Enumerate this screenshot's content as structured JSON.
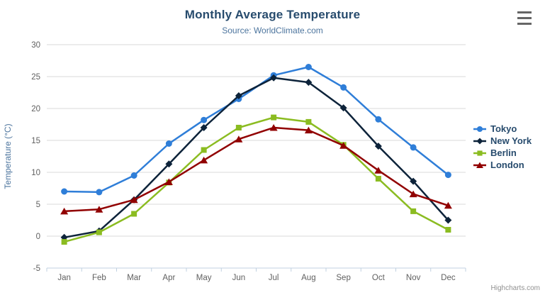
{
  "header": {
    "title": "Monthly Average Temperature",
    "subtitle": "Source: WorldClimate.com"
  },
  "credit": {
    "label": "Highcharts.com"
  },
  "icons": {
    "context_menu": "hamburger-menu-icon"
  },
  "colors": {
    "title_text": "#274b6d",
    "subtitle_text": "#4d759e",
    "axis_label": "#606060",
    "axis_title": "#4d759e",
    "grid_line": "#d8d8d8",
    "axis_line": "#c0d0e0",
    "legend_text": "#274b6d",
    "credit_text": "#909090",
    "menu_icon": "#666666"
  },
  "chart_data": {
    "type": "line",
    "title": "Monthly Average Temperature",
    "subtitle": "Source: WorldClimate.com",
    "categories": [
      "Jan",
      "Feb",
      "Mar",
      "Apr",
      "May",
      "Jun",
      "Jul",
      "Aug",
      "Sep",
      "Oct",
      "Nov",
      "Dec"
    ],
    "xlabel": "",
    "ylabel": "Temperature (°C)",
    "ylim": [
      -5,
      30
    ],
    "ytick_step": 5,
    "grid": true,
    "legend_position": "right",
    "series": [
      {
        "name": "Tokyo",
        "color": "#2f7ed8",
        "marker": "circle",
        "values": [
          7.0,
          6.9,
          9.5,
          14.5,
          18.2,
          21.5,
          25.2,
          26.5,
          23.3,
          18.3,
          13.9,
          9.6
        ]
      },
      {
        "name": "New York",
        "color": "#0d233a",
        "marker": "diamond",
        "values": [
          -0.2,
          0.8,
          5.7,
          11.3,
          17.0,
          22.0,
          24.8,
          24.1,
          20.1,
          14.1,
          8.6,
          2.5
        ]
      },
      {
        "name": "Berlin",
        "color": "#8bbc21",
        "marker": "square",
        "values": [
          -0.9,
          0.6,
          3.5,
          8.4,
          13.5,
          17.0,
          18.6,
          17.9,
          14.3,
          9.0,
          3.9,
          1.0
        ]
      },
      {
        "name": "London",
        "color": "#910000",
        "marker": "triangle",
        "values": [
          3.9,
          4.2,
          5.7,
          8.5,
          11.9,
          15.2,
          17.0,
          16.6,
          14.2,
          10.3,
          6.6,
          4.8
        ]
      }
    ]
  }
}
